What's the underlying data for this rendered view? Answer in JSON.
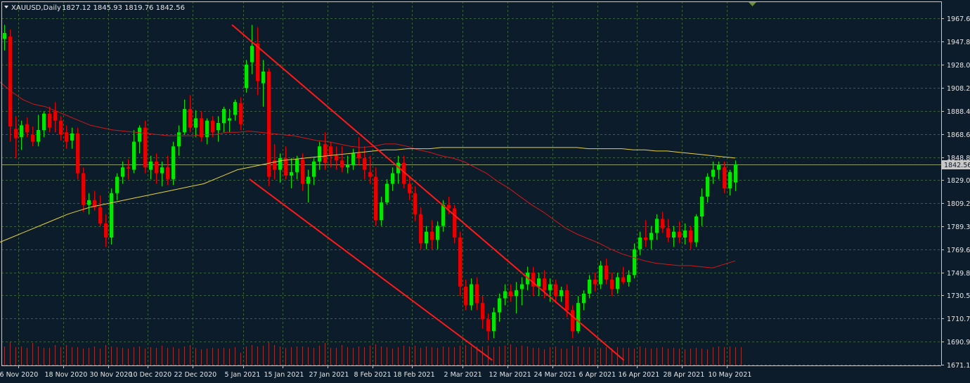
{
  "header": {
    "symbol": "XAUUSD,Daily",
    "ohlc": "1827.12 1845.93 1819.76 1842.56"
  },
  "colors": {
    "background": "#0c1c2b",
    "grid": "#3b5f43",
    "frame": "#c8c8c8",
    "bull": "#00e600",
    "bear": "#e60000",
    "volume": "#a03030",
    "ma_fast": "#d01818",
    "ma_slow": "#e8d23a",
    "channel": "#ff1a1a",
    "price_line": "#8a9a6a",
    "current_label_bg": "#c8c8c8"
  },
  "current_price_label": "1842.56",
  "chart_data": {
    "type": "candlestick",
    "symbol": "XAUUSD",
    "timeframe": "Daily",
    "ylim": [
      1671.15,
      1967.6
    ],
    "y_ticks": [
      "1967.60",
      "1947.80",
      "1928.00",
      "1908.20",
      "1888.40",
      "1868.60",
      "1848.80",
      "1829.00",
      "1809.20",
      "1789.35",
      "1769.60",
      "1749.80",
      "1730.55",
      "1710.75",
      "1690.95",
      "1671.15"
    ],
    "x_ticks": [
      "6 Nov 2020",
      "18 Nov 2020",
      "30 Nov 2020",
      "10 Dec 2020",
      "22 Dec 2020",
      "5 Jan 2021",
      "15 Jan 2021",
      "27 Jan 2021",
      "8 Feb 2021",
      "18 Feb 2021",
      "2 Mar 2021",
      "12 Mar 2021",
      "24 Mar 2021",
      "6 Apr 2021",
      "16 Apr 2021",
      "28 Apr 2021",
      "10 May 2021"
    ],
    "last": 1842.56,
    "candles": [
      [
        1950,
        1962,
        1940,
        1955
      ],
      [
        1952,
        1958,
        1862,
        1875
      ],
      [
        1873,
        1884,
        1848,
        1865
      ],
      [
        1866,
        1880,
        1855,
        1876
      ],
      [
        1877,
        1883,
        1866,
        1870
      ],
      [
        1868,
        1875,
        1858,
        1862
      ],
      [
        1862,
        1885,
        1858,
        1872
      ],
      [
        1872,
        1888,
        1866,
        1886
      ],
      [
        1886,
        1892,
        1870,
        1874
      ],
      [
        1888,
        1896,
        1870,
        1880
      ],
      [
        1880,
        1884,
        1863,
        1868
      ],
      [
        1870,
        1876,
        1856,
        1862
      ],
      [
        1863,
        1874,
        1856,
        1869
      ],
      [
        1869,
        1874,
        1830,
        1835
      ],
      [
        1835,
        1840,
        1802,
        1808
      ],
      [
        1808,
        1818,
        1800,
        1812
      ],
      [
        1812,
        1820,
        1803,
        1806
      ],
      [
        1806,
        1816,
        1790,
        1792
      ],
      [
        1792,
        1800,
        1772,
        1780
      ],
      [
        1780,
        1822,
        1774,
        1818
      ],
      [
        1818,
        1835,
        1812,
        1832
      ],
      [
        1832,
        1845,
        1826,
        1840
      ],
      [
        1840,
        1847,
        1830,
        1839
      ],
      [
        1838,
        1872,
        1835,
        1862
      ],
      [
        1862,
        1876,
        1852,
        1874
      ],
      [
        1874,
        1880,
        1835,
        1840
      ],
      [
        1838,
        1850,
        1830,
        1845
      ],
      [
        1845,
        1852,
        1826,
        1835
      ],
      [
        1835,
        1845,
        1824,
        1840
      ],
      [
        1840,
        1850,
        1825,
        1830
      ],
      [
        1830,
        1862,
        1825,
        1858
      ],
      [
        1858,
        1876,
        1850,
        1870
      ],
      [
        1870,
        1898,
        1868,
        1890
      ],
      [
        1890,
        1902,
        1870,
        1874
      ],
      [
        1874,
        1889,
        1866,
        1882
      ],
      [
        1882,
        1888,
        1862,
        1866
      ],
      [
        1866,
        1882,
        1860,
        1880
      ],
      [
        1880,
        1884,
        1866,
        1870
      ],
      [
        1872,
        1884,
        1862,
        1878
      ],
      [
        1878,
        1892,
        1870,
        1890
      ],
      [
        1880,
        1890,
        1870,
        1882
      ],
      [
        1885,
        1898,
        1880,
        1896
      ],
      [
        1895,
        1900,
        1872,
        1877
      ],
      [
        1908,
        1932,
        1904,
        1928
      ],
      [
        1930,
        1962,
        1920,
        1944
      ],
      [
        1946,
        1960,
        1902,
        1914
      ],
      [
        1912,
        1932,
        1892,
        1922
      ],
      [
        1922,
        1925,
        1824,
        1832
      ],
      [
        1846,
        1860,
        1830,
        1838
      ],
      [
        1838,
        1852,
        1827,
        1848
      ],
      [
        1848,
        1858,
        1830,
        1833
      ],
      [
        1833,
        1848,
        1822,
        1836
      ],
      [
        1836,
        1850,
        1830,
        1847
      ],
      [
        1847,
        1852,
        1820,
        1826
      ],
      [
        1826,
        1838,
        1810,
        1832
      ],
      [
        1832,
        1848,
        1825,
        1845
      ],
      [
        1845,
        1862,
        1838,
        1858
      ],
      [
        1860,
        1870,
        1838,
        1844
      ],
      [
        1858,
        1862,
        1840,
        1850
      ],
      [
        1850,
        1858,
        1838,
        1846
      ],
      [
        1846,
        1858,
        1836,
        1840
      ],
      [
        1840,
        1850,
        1835,
        1842
      ],
      [
        1842,
        1856,
        1838,
        1852
      ],
      [
        1852,
        1866,
        1842,
        1848
      ],
      [
        1848,
        1858,
        1830,
        1838
      ],
      [
        1836,
        1850,
        1826,
        1832
      ],
      [
        1832,
        1840,
        1790,
        1795
      ],
      [
        1795,
        1815,
        1790,
        1810
      ],
      [
        1810,
        1830,
        1808,
        1826
      ],
      [
        1826,
        1840,
        1820,
        1835
      ],
      [
        1835,
        1850,
        1826,
        1844
      ],
      [
        1844,
        1850,
        1822,
        1826
      ],
      [
        1826,
        1832,
        1812,
        1818
      ],
      [
        1818,
        1824,
        1794,
        1800
      ],
      [
        1800,
        1806,
        1770,
        1775
      ],
      [
        1775,
        1790,
        1770,
        1785
      ],
      [
        1785,
        1795,
        1770,
        1778
      ],
      [
        1778,
        1794,
        1770,
        1790
      ],
      [
        1790,
        1812,
        1785,
        1808
      ],
      [
        1808,
        1815,
        1800,
        1805
      ],
      [
        1805,
        1808,
        1775,
        1780
      ],
      [
        1780,
        1785,
        1730,
        1738
      ],
      [
        1738,
        1744,
        1718,
        1722
      ],
      [
        1722,
        1745,
        1718,
        1740
      ],
      [
        1740,
        1746,
        1718,
        1724
      ],
      [
        1724,
        1730,
        1702,
        1710
      ],
      [
        1710,
        1715,
        1692,
        1700
      ],
      [
        1700,
        1720,
        1694,
        1716
      ],
      [
        1716,
        1732,
        1708,
        1728
      ],
      [
        1728,
        1740,
        1722,
        1734
      ],
      [
        1734,
        1740,
        1725,
        1730
      ],
      [
        1730,
        1742,
        1715,
        1735
      ],
      [
        1736,
        1746,
        1722,
        1740
      ],
      [
        1740,
        1755,
        1735,
        1750
      ],
      [
        1750,
        1755,
        1730,
        1738
      ],
      [
        1738,
        1750,
        1730,
        1745
      ],
      [
        1745,
        1752,
        1728,
        1735
      ],
      [
        1735,
        1745,
        1725,
        1740
      ],
      [
        1740,
        1744,
        1724,
        1730
      ],
      [
        1730,
        1738,
        1725,
        1735
      ],
      [
        1735,
        1740,
        1712,
        1718
      ],
      [
        1718,
        1722,
        1694,
        1700
      ],
      [
        1700,
        1730,
        1698,
        1724
      ],
      [
        1724,
        1735,
        1718,
        1732
      ],
      [
        1732,
        1748,
        1728,
        1744
      ],
      [
        1744,
        1750,
        1734,
        1740
      ],
      [
        1740,
        1760,
        1736,
        1756
      ],
      [
        1756,
        1762,
        1740,
        1744
      ],
      [
        1744,
        1750,
        1730,
        1736
      ],
      [
        1736,
        1750,
        1732,
        1746
      ],
      [
        1746,
        1755,
        1740,
        1742
      ],
      [
        1742,
        1752,
        1738,
        1748
      ],
      [
        1748,
        1775,
        1745,
        1770
      ],
      [
        1770,
        1785,
        1765,
        1780
      ],
      [
        1780,
        1795,
        1772,
        1778
      ],
      [
        1778,
        1790,
        1770,
        1784
      ],
      [
        1784,
        1800,
        1778,
        1796
      ],
      [
        1796,
        1802,
        1784,
        1788
      ],
      [
        1788,
        1796,
        1776,
        1780
      ],
      [
        1780,
        1790,
        1772,
        1785
      ],
      [
        1785,
        1794,
        1775,
        1780
      ],
      [
        1780,
        1792,
        1774,
        1786
      ],
      [
        1786,
        1790,
        1770,
        1776
      ],
      [
        1776,
        1800,
        1772,
        1798
      ],
      [
        1798,
        1822,
        1790,
        1815
      ],
      [
        1815,
        1835,
        1810,
        1832
      ],
      [
        1832,
        1845,
        1826,
        1838
      ],
      [
        1838,
        1845,
        1830,
        1842
      ],
      [
        1840,
        1845,
        1818,
        1822
      ],
      [
        1822,
        1838,
        1816,
        1836
      ],
      [
        1827.12,
        1845.93,
        1819.76,
        1842.56
      ]
    ],
    "volume": [
      0.27,
      0.33,
      0.26,
      0.27,
      0.25,
      0.32,
      0.27,
      0.25,
      0.25,
      0.29,
      0.26,
      0.29,
      0.26,
      0.26,
      0.24,
      0.25,
      0.27,
      0.24,
      0.29,
      0.27,
      0.26,
      0.25,
      0.24,
      0.26,
      0.27,
      0.24,
      0.26,
      0.25,
      0.28,
      0.25,
      0.26,
      0.24,
      0.27,
      0.29,
      0.25,
      0.23,
      0.24,
      0.25,
      0.24,
      0.25,
      0.24,
      0.26,
      0.18,
      0.27,
      0.29,
      0.27,
      0.28,
      0.33,
      0.29,
      0.27,
      0.25,
      0.26,
      0.27,
      0.27,
      0.26,
      0.25,
      0.28,
      0.32,
      0.25,
      0.25,
      0.29,
      0.26,
      0.25,
      0.27,
      0.26,
      0.28,
      0.3,
      0.27,
      0.26,
      0.24,
      0.26,
      0.28,
      0.27,
      0.28,
      0.25,
      0.27,
      0.26,
      0.25,
      0.27,
      0.26,
      0.26,
      0.28,
      0.29,
      0.27,
      0.27,
      0.27,
      0.28,
      0.26,
      0.27,
      0.28,
      0.3,
      0.26,
      0.28,
      0.27,
      0.25,
      0.25,
      0.23,
      0.26,
      0.27,
      0.24,
      0.24,
      0.28,
      0.27,
      0.26,
      0.26,
      0.24,
      0.25,
      0.26,
      0.24,
      0.26,
      0.25,
      0.25,
      0.24,
      0.27,
      0.25,
      0.24,
      0.25,
      0.26,
      0.24,
      0.25,
      0.24,
      0.23,
      0.24,
      0.25,
      0.24,
      0.23,
      0.26,
      0.27,
      0.26,
      0.27,
      0.26,
      0.26
    ],
    "ma_fast": [
      1913,
      1905,
      1898,
      1894,
      1892,
      1888,
      1884,
      1880,
      1876,
      1874,
      1872,
      1871,
      1870,
      1869,
      1868,
      1867,
      1867,
      1867,
      1868,
      1868,
      1870,
      1870,
      1871,
      1870,
      1869,
      1868,
      1867,
      1865,
      1863,
      1862,
      1860,
      1858,
      1857,
      1858,
      1860,
      1860,
      1858,
      1855,
      1853,
      1850,
      1848,
      1845,
      1840,
      1835,
      1828,
      1822,
      1815,
      1808,
      1802,
      1795,
      1788,
      1783,
      1779,
      1775,
      1770,
      1766,
      1763,
      1760,
      1758,
      1757,
      1756,
      1756,
      1755,
      1754,
      1757,
      1760
    ],
    "ma_fast_x0": 0,
    "ma_slow": [
      1776,
      1780,
      1784,
      1788,
      1792,
      1796,
      1800,
      1803,
      1806,
      1808,
      1810,
      1812,
      1814,
      1816,
      1818,
      1820,
      1822,
      1824,
      1826,
      1830,
      1834,
      1838,
      1840,
      1842,
      1844,
      1846,
      1847,
      1848,
      1849,
      1850,
      1851,
      1852,
      1853,
      1854,
      1855,
      1855,
      1856,
      1856,
      1856,
      1857,
      1857,
      1857,
      1857,
      1857,
      1857,
      1857,
      1857,
      1857,
      1857,
      1857,
      1857,
      1857,
      1856,
      1856,
      1856,
      1856,
      1855,
      1855,
      1854,
      1854,
      1853,
      1852,
      1851,
      1850,
      1849,
      1848
    ],
    "channel_upper": [
      [
        44,
        1962
      ],
      [
        113,
        1850
      ],
      [
        138,
        1800
      ],
      [
        178,
        1720
      ],
      [
        178.5,
        1679
      ]
    ],
    "channel_lower": [
      [
        44,
        1830
      ],
      [
        112,
        1679
      ]
    ]
  }
}
